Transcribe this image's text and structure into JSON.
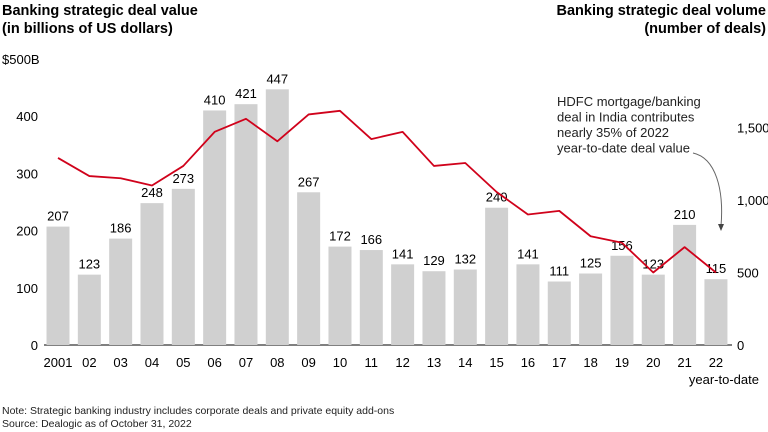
{
  "chart_data": {
    "type": "bar+line",
    "title_left": "Banking strategic deal value",
    "subtitle_left": "(in billions of US dollars)",
    "title_right": "Banking strategic deal volume",
    "subtitle_right": "(number of deals)",
    "categories": [
      "2001",
      "02",
      "03",
      "04",
      "05",
      "06",
      "07",
      "08",
      "09",
      "10",
      "11",
      "12",
      "13",
      "14",
      "15",
      "16",
      "17",
      "18",
      "19",
      "20",
      "21",
      "22"
    ],
    "x_sublabel_last": "year-to-date",
    "bar_values": [
      207,
      123,
      186,
      248,
      273,
      410,
      421,
      447,
      267,
      172,
      166,
      141,
      129,
      132,
      240,
      141,
      111,
      125,
      156,
      123,
      210,
      115
    ],
    "line_values": [
      1290,
      1165,
      1150,
      1100,
      1235,
      1470,
      1560,
      1405,
      1590,
      1615,
      1420,
      1470,
      1235,
      1255,
      1055,
      900,
      925,
      750,
      705,
      500,
      675,
      500
    ],
    "left_axis": {
      "ylim": [
        0,
        500
      ],
      "ticks": [
        "0",
        "100",
        "200",
        "300",
        "400",
        "$500B"
      ]
    },
    "right_axis": {
      "ylim": [
        0,
        2000
      ],
      "ticks": [
        "0",
        "500",
        "1,000",
        "1,500"
      ]
    },
    "bar_color": "#d0d0d0",
    "line_color": "#d0021b",
    "annotation": [
      "HDFC mortgage/banking",
      "deal in India contributes",
      "nearly 35% of 2022",
      "year-to-date deal value"
    ],
    "grid": false
  },
  "notes": {
    "note": "Note: Strategic banking industry includes corporate deals and private equity add-ons",
    "source": "Source: Dealogic as of October 31, 2022"
  }
}
